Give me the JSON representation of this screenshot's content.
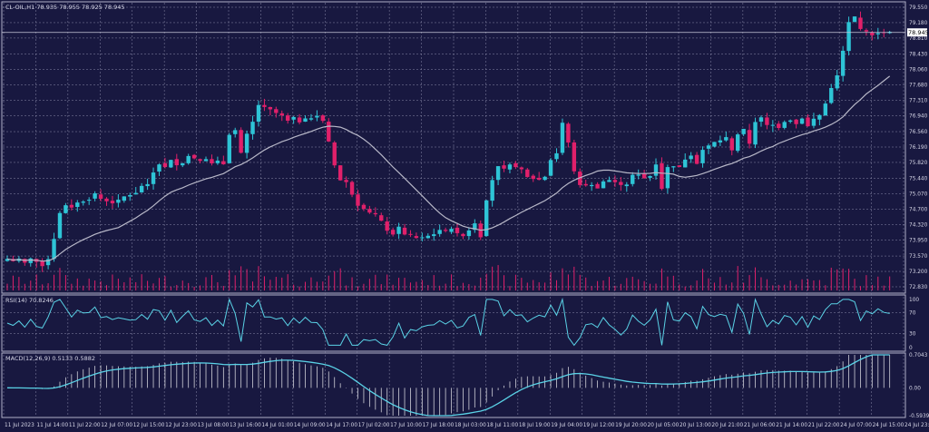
{
  "colors": {
    "background": "#181840",
    "panel_bg": "#181840",
    "grid": "#8a8aa8",
    "text": "#d8d8e8",
    "bull": "#2ec4d6",
    "bear": "#e0206a",
    "ma": "#b8b8c8",
    "rsi": "#5ad2e6",
    "macd_line": "#5ad2e6",
    "macd_hist": "#d0d0d8",
    "price_tag_bg": "#ffffff",
    "price_tag_text": "#000000"
  },
  "main_panel": {
    "header": "CL-OIL,H1  78.935 78.955 78.925 78.945",
    "current_price": "78.945",
    "y_ticks": [
      "79.550",
      "79.180",
      "78.810",
      "78.430",
      "78.060",
      "77.680",
      "77.310",
      "76.940",
      "76.560",
      "76.190",
      "75.820",
      "75.440",
      "75.070",
      "74.700",
      "74.320",
      "73.950",
      "73.570",
      "73.200",
      "72.830"
    ]
  },
  "rsi_panel": {
    "header": "RSI(14) 70.8246",
    "y_ticks": [
      "100",
      "70",
      "30",
      "0"
    ]
  },
  "macd_panel": {
    "header": "MACD(12,26,9) 0.5133 0.5882",
    "y_ticks": [
      "0.7043",
      "0.00",
      "-0.5939"
    ]
  },
  "x_axis_labels": [
    "11 Jul 2023",
    "11 Jul 14:00",
    "11 Jul 22:00",
    "12 Jul 07:00",
    "12 Jul 15:00",
    "12 Jul 23:00",
    "13 Jul 08:00",
    "13 Jul 16:00",
    "14 Jul 01:00",
    "14 Jul 09:00",
    "14 Jul 17:00",
    "17 Jul 02:00",
    "17 Jul 10:00",
    "17 Jul 18:00",
    "18 Jul 03:00",
    "18 Jul 11:00",
    "18 Jul 19:00",
    "19 Jul 04:00",
    "19 Jul 12:00",
    "19 Jul 20:00",
    "20 Jul 05:00",
    "20 Jul 13:00",
    "20 Jul 21:00",
    "21 Jul 06:00",
    "21 Jul 14:00",
    "21 Jul 22:00",
    "24 Jul 07:00",
    "24 Jul 15:00",
    "24 Jul 23:00"
  ],
  "chart_data": {
    "type": "candlestick",
    "symbol": "CL-OIL",
    "timeframe": "H1",
    "last": {
      "open": 78.935,
      "high": 78.955,
      "low": 78.925,
      "close": 78.945
    },
    "ylim": [
      72.83,
      79.55
    ],
    "close_path": [
      73.5,
      73.45,
      73.5,
      73.4,
      73.5,
      73.45,
      73.35,
      73.5,
      74.0,
      74.6,
      74.8,
      74.75,
      74.85,
      74.9,
      74.95,
      75.05,
      74.95,
      74.9,
      74.85,
      74.9,
      75.0,
      75.05,
      75.1,
      75.25,
      75.3,
      75.6,
      75.8,
      75.7,
      75.9,
      75.75,
      75.8,
      76.0,
      75.9,
      75.85,
      75.9,
      75.8,
      75.85,
      75.8,
      76.5,
      76.6,
      76.05,
      76.5,
      76.8,
      77.2,
      77.15,
      77.1,
      77.0,
      76.95,
      76.85,
      76.9,
      76.8,
      76.85,
      76.9,
      76.95,
      76.8,
      76.3,
      75.75,
      75.4,
      75.35,
      75.05,
      74.8,
      74.7,
      74.6,
      74.55,
      74.4,
      74.2,
      74.1,
      74.25,
      74.1,
      74.05,
      74.0,
      74.0,
      74.05,
      74.1,
      74.2,
      74.15,
      74.25,
      74.1,
      74.05,
      74.2,
      74.35,
      74.05,
      74.9,
      75.4,
      75.75,
      75.65,
      75.8,
      75.7,
      75.65,
      75.5,
      75.45,
      75.4,
      75.5,
      75.9,
      76.05,
      76.75,
      76.3,
      75.6,
      75.3,
      75.25,
      75.3,
      75.2,
      75.35,
      75.4,
      75.35,
      75.25,
      75.3,
      75.5,
      75.55,
      75.45,
      75.5,
      75.8,
      75.2,
      75.7,
      75.75,
      75.7,
      75.9,
      76.0,
      75.8,
      76.15,
      76.2,
      76.3,
      76.35,
      76.4,
      76.1,
      76.5,
      76.6,
      76.25,
      76.8,
      76.9,
      76.7,
      76.75,
      76.65,
      76.8,
      76.85,
      76.75,
      76.9,
      76.7,
      76.85,
      76.95,
      77.25,
      77.6,
      77.9,
      78.5,
      79.2,
      79.3,
      79.0,
      78.95,
      78.9,
      78.95,
      78.93,
      78.945
    ]
  }
}
